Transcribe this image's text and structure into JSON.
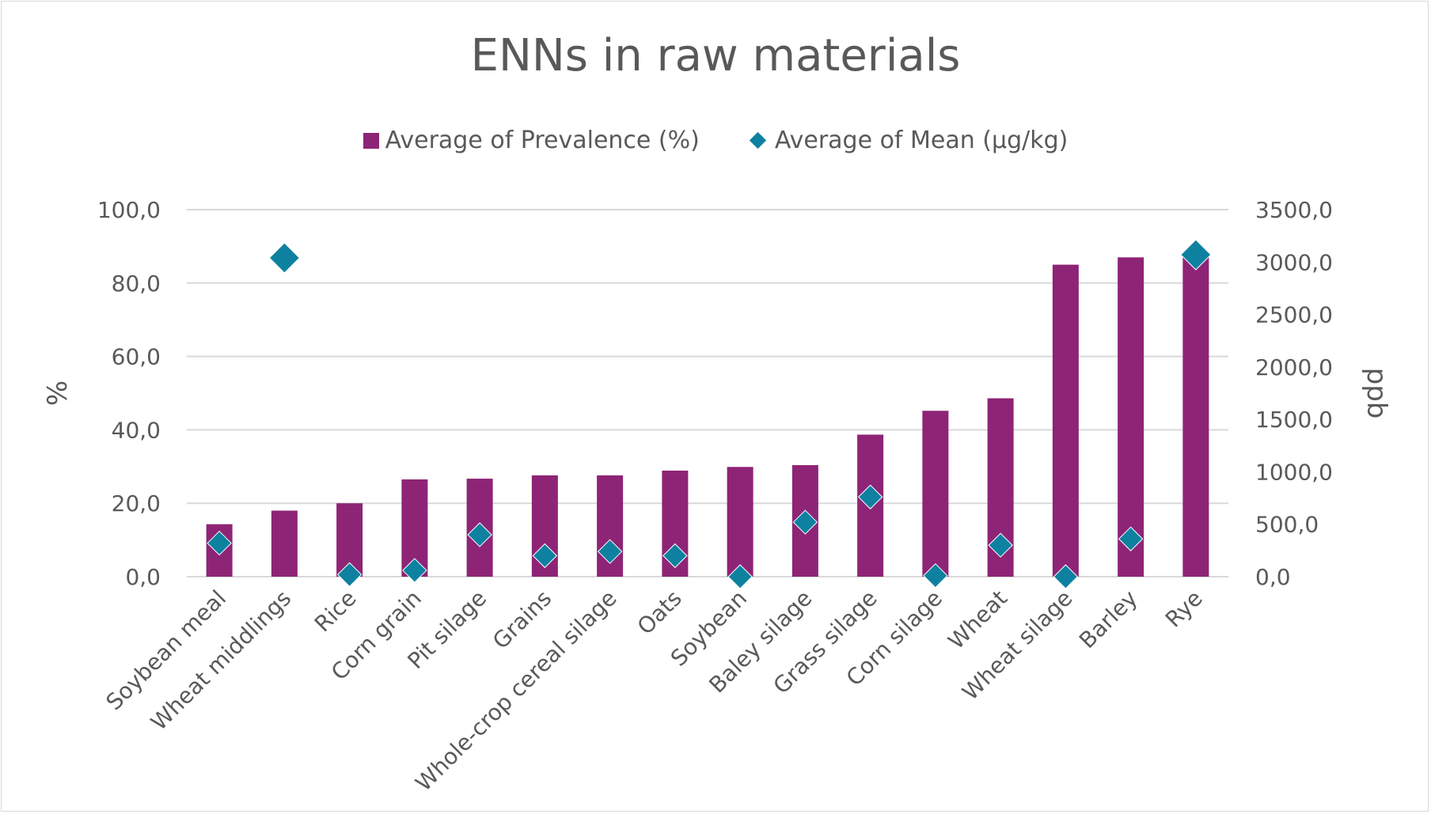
{
  "chart_data": {
    "type": "bar",
    "title": "ENNs in raw materials",
    "ylabel": "%",
    "y2label": "ppb",
    "ylim": [
      0,
      100
    ],
    "y2lim": [
      0,
      3500
    ],
    "yticks": [
      "0,0",
      "20,0",
      "40,0",
      "60,0",
      "80,0",
      "100,0"
    ],
    "y2ticks": [
      "0,0",
      "500,0",
      "1000,0",
      "1500,0",
      "2000,0",
      "2500,0",
      "3000,0",
      "3500,0"
    ],
    "legend_position": "top",
    "grid": true,
    "categories": [
      "Soybean meal",
      "Wheat middlings",
      "Rice",
      "Corn grain",
      "Pit silage",
      "Grains",
      "Whole-crop cereal silage",
      "Oats",
      "Soybean",
      "Baley silage",
      "Grass silage",
      "Corn silage",
      "Wheat",
      "Wheat silage",
      "Barley",
      "Rye"
    ],
    "series": [
      {
        "name": "Average of Prevalence (%)",
        "kind": "bar",
        "axis": "left",
        "color": "#8e2475",
        "values": [
          14.3,
          18.0,
          20.0,
          26.5,
          26.7,
          27.6,
          27.6,
          28.9,
          29.9,
          30.4,
          38.7,
          45.2,
          48.6,
          85.0,
          87.0,
          88.0
        ]
      },
      {
        "name": "Average of Mean (µg/kg)",
        "kind": "marker",
        "axis": "right",
        "color": "#0e81a0",
        "values": [
          320,
          3040,
          20,
          60,
          400,
          200,
          240,
          200,
          0,
          520,
          760,
          10,
          300,
          0,
          360,
          3070
        ]
      }
    ]
  }
}
